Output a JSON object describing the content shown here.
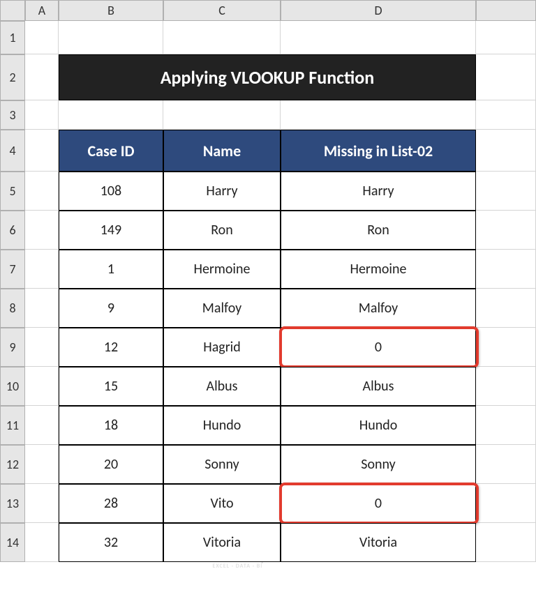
{
  "columns": {
    "corner": "",
    "A": "A",
    "B": "B",
    "C": "C",
    "D": "D"
  },
  "rowLabels": [
    "1",
    "2",
    "3",
    "4",
    "5",
    "6",
    "7",
    "8",
    "9",
    "10",
    "11",
    "12",
    "13",
    "14"
  ],
  "layout": {
    "cornerW": 36,
    "colA_W": 48,
    "colB_W": 150,
    "colC_W": 168,
    "colD_W": 280,
    "extraW": 86,
    "hdrH": 30,
    "row1H": 48,
    "row2H": 66,
    "row3H": 42,
    "row4H": 60,
    "rowDataH": 56
  },
  "title": "Applying VLOOKUP Function",
  "headers": {
    "B": "Case ID",
    "C": "Name",
    "D": "Missing in List-02"
  },
  "rows": [
    {
      "id": "108",
      "name": "Harry",
      "missing": "Harry",
      "hl": false
    },
    {
      "id": "149",
      "name": "Ron",
      "missing": "Ron",
      "hl": false
    },
    {
      "id": "1",
      "name": "Hermoine",
      "missing": "Hermoine",
      "hl": false
    },
    {
      "id": "9",
      "name": "Malfoy",
      "missing": "Malfoy",
      "hl": false
    },
    {
      "id": "12",
      "name": "Hagrid",
      "missing": "0",
      "hl": true
    },
    {
      "id": "15",
      "name": "Albus",
      "missing": "Albus",
      "hl": false
    },
    {
      "id": "18",
      "name": "Hundo",
      "missing": "Hundo",
      "hl": false
    },
    {
      "id": "20",
      "name": "Sonny",
      "missing": "Sonny",
      "hl": false
    },
    {
      "id": "28",
      "name": "Vito",
      "missing": "0",
      "hl": true
    },
    {
      "id": "32",
      "name": "Vitoria",
      "missing": "Vitoria",
      "hl": false
    }
  ],
  "colors": {
    "headerBg": "#2e4a7d",
    "titleBg": "#222222",
    "highlightBorder": "#e23b2e",
    "gridHeaderBg": "#e6e6e6"
  },
  "watermark": {
    "main": "ExcelDemy",
    "sub": "EXCEL · DATA · BI"
  }
}
